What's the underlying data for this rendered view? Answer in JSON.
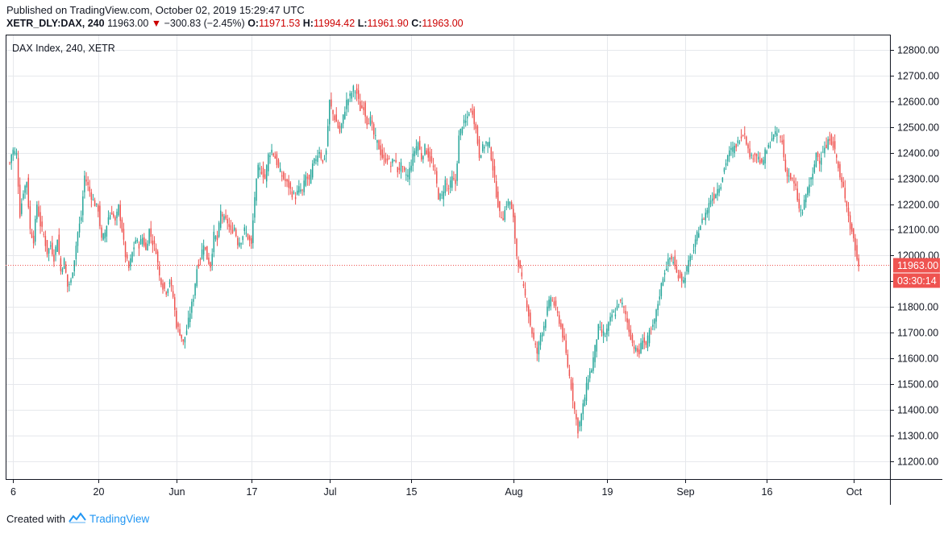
{
  "header": {
    "published": "Published on TradingView.com, October 02, 2019 15:29:47 UTC",
    "symbol": "XETR_DLY:DAX, 240",
    "last": "11963.00",
    "change_arrow": "▼",
    "change": "−300.83 (−2.45%)",
    "open_label": "O:",
    "open": "11971.53",
    "high_label": "H:",
    "high": "11994.42",
    "low_label": "L:",
    "low": "11961.90",
    "close_label": "C:",
    "close": "11963.00"
  },
  "legend_title": "DAX Index, 240, XETR",
  "price_badge": {
    "value": "11963.00",
    "countdown": "03:30:14",
    "color": "#ef5350"
  },
  "footer": {
    "created_with": "Created with",
    "brand": "TradingView"
  },
  "colors": {
    "up": "#26a69a",
    "down": "#ef5350",
    "grid": "#e6e8ec",
    "axis": "#131722"
  },
  "chart_data": {
    "type": "candlestick",
    "ylim": [
      11130,
      12860
    ],
    "y_ticks": [
      11200,
      11300,
      11400,
      11500,
      11600,
      11700,
      11800,
      11900,
      12000,
      12100,
      12200,
      12300,
      12400,
      12500,
      12600,
      12700,
      12800
    ],
    "y_tick_labels": [
      "11200.00",
      "11300.00",
      "11400.00",
      "11500.00",
      "11600.00",
      "11700.00",
      "11800.00",
      "11900.00",
      "12000.00",
      "12100.00",
      "12200.00",
      "12300.00",
      "12400.00",
      "12500.00",
      "12600.00",
      "12700.00",
      "12800.00"
    ],
    "x_labels": [
      {
        "label": "6",
        "index": 2
      },
      {
        "label": "20",
        "index": 52
      },
      {
        "label": "Jun",
        "index": 98
      },
      {
        "label": "17",
        "index": 142
      },
      {
        "label": "Jul",
        "index": 188
      },
      {
        "label": "15",
        "index": 236
      },
      {
        "label": "Aug",
        "index": 296
      },
      {
        "label": "19",
        "index": 351
      },
      {
        "label": "Sep",
        "index": 397
      },
      {
        "label": "16",
        "index": 445
      },
      {
        "label": "Oct",
        "index": 496
      }
    ],
    "n_slots": 516,
    "last_price": 11963.0,
    "waypoints": [
      [
        0,
        12360
      ],
      [
        1,
        12395
      ],
      [
        2,
        12410
      ],
      [
        4,
        12395
      ],
      [
        6,
        12160
      ],
      [
        8,
        12250
      ],
      [
        10,
        12290
      ],
      [
        12,
        12100
      ],
      [
        14,
        12060
      ],
      [
        16,
        12200
      ],
      [
        18,
        12120
      ],
      [
        20,
        12080
      ],
      [
        22,
        12010
      ],
      [
        24,
        12040
      ],
      [
        26,
        11990
      ],
      [
        28,
        12070
      ],
      [
        30,
        11940
      ],
      [
        32,
        11980
      ],
      [
        34,
        11880
      ],
      [
        36,
        11900
      ],
      [
        38,
        11990
      ],
      [
        40,
        12090
      ],
      [
        42,
        12150
      ],
      [
        44,
        12310
      ],
      [
        46,
        12270
      ],
      [
        48,
        12230
      ],
      [
        50,
        12200
      ],
      [
        52,
        12180
      ],
      [
        54,
        12060
      ],
      [
        56,
        12090
      ],
      [
        58,
        12150
      ],
      [
        60,
        12170
      ],
      [
        62,
        12130
      ],
      [
        64,
        12190
      ],
      [
        66,
        12100
      ],
      [
        68,
        12000
      ],
      [
        70,
        11950
      ],
      [
        72,
        12010
      ],
      [
        74,
        12060
      ],
      [
        76,
        12040
      ],
      [
        78,
        12070
      ],
      [
        80,
        12020
      ],
      [
        82,
        12100
      ],
      [
        84,
        12050
      ],
      [
        86,
        12020
      ],
      [
        88,
        11920
      ],
      [
        90,
        11880
      ],
      [
        92,
        11860
      ],
      [
        94,
        11900
      ],
      [
        96,
        11840
      ],
      [
        98,
        11730
      ],
      [
        100,
        11700
      ],
      [
        102,
        11660
      ],
      [
        104,
        11710
      ],
      [
        106,
        11780
      ],
      [
        108,
        11840
      ],
      [
        110,
        11950
      ],
      [
        112,
        11990
      ],
      [
        114,
        12050
      ],
      [
        116,
        11990
      ],
      [
        118,
        11960
      ],
      [
        120,
        12080
      ],
      [
        122,
        12060
      ],
      [
        124,
        12170
      ],
      [
        126,
        12140
      ],
      [
        128,
        12130
      ],
      [
        130,
        12090
      ],
      [
        132,
        12110
      ],
      [
        134,
        12050
      ],
      [
        136,
        12060
      ],
      [
        138,
        12100
      ],
      [
        140,
        12070
      ],
      [
        142,
        12040
      ],
      [
        144,
        12230
      ],
      [
        146,
        12340
      ],
      [
        148,
        12330
      ],
      [
        150,
        12300
      ],
      [
        152,
        12390
      ],
      [
        154,
        12410
      ],
      [
        156,
        12380
      ],
      [
        158,
        12340
      ],
      [
        160,
        12310
      ],
      [
        162,
        12290
      ],
      [
        164,
        12270
      ],
      [
        166,
        12240
      ],
      [
        168,
        12230
      ],
      [
        170,
        12260
      ],
      [
        172,
        12250
      ],
      [
        174,
        12310
      ],
      [
        176,
        12290
      ],
      [
        178,
        12350
      ],
      [
        180,
        12380
      ],
      [
        182,
        12410
      ],
      [
        184,
        12360
      ],
      [
        186,
        12410
      ],
      [
        188,
        12600
      ],
      [
        190,
        12550
      ],
      [
        192,
        12520
      ],
      [
        194,
        12480
      ],
      [
        196,
        12540
      ],
      [
        198,
        12600
      ],
      [
        200,
        12620
      ],
      [
        202,
        12650
      ],
      [
        204,
        12630
      ],
      [
        206,
        12570
      ],
      [
        208,
        12580
      ],
      [
        210,
        12520
      ],
      [
        212,
        12530
      ],
      [
        214,
        12470
      ],
      [
        216,
        12440
      ],
      [
        218,
        12400
      ],
      [
        220,
        12370
      ],
      [
        222,
        12380
      ],
      [
        224,
        12350
      ],
      [
        226,
        12380
      ],
      [
        228,
        12330
      ],
      [
        230,
        12350
      ],
      [
        232,
        12320
      ],
      [
        234,
        12310
      ],
      [
        236,
        12360
      ],
      [
        238,
        12410
      ],
      [
        240,
        12440
      ],
      [
        242,
        12380
      ],
      [
        244,
        12420
      ],
      [
        246,
        12390
      ],
      [
        248,
        12360
      ],
      [
        250,
        12320
      ],
      [
        252,
        12230
      ],
      [
        254,
        12230
      ],
      [
        256,
        12290
      ],
      [
        258,
        12260
      ],
      [
        260,
        12300
      ],
      [
        262,
        12280
      ],
      [
        264,
        12460
      ],
      [
        266,
        12510
      ],
      [
        268,
        12520
      ],
      [
        270,
        12560
      ],
      [
        272,
        12560
      ],
      [
        274,
        12490
      ],
      [
        276,
        12390
      ],
      [
        278,
        12420
      ],
      [
        280,
        12440
      ],
      [
        282,
        12430
      ],
      [
        284,
        12340
      ],
      [
        286,
        12240
      ],
      [
        288,
        12160
      ],
      [
        290,
        12150
      ],
      [
        292,
        12200
      ],
      [
        294,
        12210
      ],
      [
        296,
        12140
      ],
      [
        298,
        12000
      ],
      [
        300,
        11940
      ],
      [
        302,
        11870
      ],
      [
        304,
        11810
      ],
      [
        306,
        11730
      ],
      [
        308,
        11670
      ],
      [
        310,
        11620
      ],
      [
        312,
        11690
      ],
      [
        314,
        11730
      ],
      [
        316,
        11790
      ],
      [
        318,
        11840
      ],
      [
        320,
        11810
      ],
      [
        322,
        11770
      ],
      [
        324,
        11720
      ],
      [
        326,
        11660
      ],
      [
        328,
        11570
      ],
      [
        330,
        11490
      ],
      [
        332,
        11400
      ],
      [
        334,
        11320
      ],
      [
        336,
        11380
      ],
      [
        338,
        11450
      ],
      [
        340,
        11530
      ],
      [
        342,
        11560
      ],
      [
        344,
        11640
      ],
      [
        346,
        11720
      ],
      [
        348,
        11700
      ],
      [
        350,
        11690
      ],
      [
        352,
        11730
      ],
      [
        354,
        11770
      ],
      [
        356,
        11780
      ],
      [
        358,
        11820
      ],
      [
        360,
        11810
      ],
      [
        362,
        11770
      ],
      [
        364,
        11710
      ],
      [
        366,
        11660
      ],
      [
        368,
        11630
      ],
      [
        370,
        11620
      ],
      [
        372,
        11680
      ],
      [
        374,
        11650
      ],
      [
        376,
        11700
      ],
      [
        378,
        11720
      ],
      [
        380,
        11780
      ],
      [
        382,
        11850
      ],
      [
        384,
        11920
      ],
      [
        386,
        11960
      ],
      [
        388,
        11990
      ],
      [
        390,
        11980
      ],
      [
        392,
        11930
      ],
      [
        394,
        11920
      ],
      [
        396,
        11900
      ],
      [
        398,
        11950
      ],
      [
        400,
        11990
      ],
      [
        402,
        12020
      ],
      [
        404,
        12080
      ],
      [
        406,
        12120
      ],
      [
        408,
        12150
      ],
      [
        410,
        12180
      ],
      [
        412,
        12220
      ],
      [
        414,
        12230
      ],
      [
        416,
        12260
      ],
      [
        418,
        12280
      ],
      [
        420,
        12340
      ],
      [
        422,
        12390
      ],
      [
        424,
        12410
      ],
      [
        426,
        12420
      ],
      [
        428,
        12440
      ],
      [
        430,
        12470
      ],
      [
        432,
        12480
      ],
      [
        434,
        12410
      ],
      [
        436,
        12380
      ],
      [
        438,
        12400
      ],
      [
        440,
        12380
      ],
      [
        442,
        12350
      ],
      [
        444,
        12400
      ],
      [
        446,
        12420
      ],
      [
        448,
        12460
      ],
      [
        450,
        12470
      ],
      [
        452,
        12480
      ],
      [
        454,
        12440
      ],
      [
        456,
        12330
      ],
      [
        458,
        12310
      ],
      [
        460,
        12290
      ],
      [
        462,
        12260
      ],
      [
        464,
        12180
      ],
      [
        466,
        12170
      ],
      [
        468,
        12240
      ],
      [
        470,
        12280
      ],
      [
        472,
        12310
      ],
      [
        474,
        12400
      ],
      [
        476,
        12370
      ],
      [
        478,
        12410
      ],
      [
        480,
        12420
      ],
      [
        482,
        12460
      ],
      [
        484,
        12430
      ],
      [
        486,
        12380
      ],
      [
        488,
        12300
      ],
      [
        490,
        12260
      ],
      [
        492,
        12200
      ],
      [
        494,
        12110
      ],
      [
        496,
        12070
      ],
      [
        498,
        11980
      ],
      [
        499,
        11966
      ]
    ]
  }
}
